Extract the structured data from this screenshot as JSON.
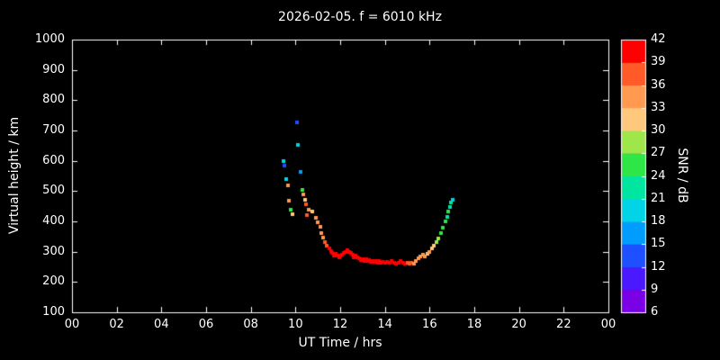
{
  "title": "2026-02-05. f = 6010 kHz",
  "colors": {
    "background": "#000000",
    "foreground": "#ffffff"
  },
  "axes": {
    "x": {
      "label": "UT Time / hrs",
      "tick_labels": [
        "00",
        "02",
        "04",
        "06",
        "08",
        "10",
        "12",
        "14",
        "16",
        "18",
        "20",
        "22",
        "00"
      ],
      "min": 0,
      "max": 24
    },
    "y": {
      "label": "Virtual height / km",
      "tick_values": [
        100,
        200,
        300,
        400,
        500,
        600,
        700,
        800,
        900,
        1000
      ],
      "min": 100,
      "max": 1000
    }
  },
  "colorbar": {
    "label": "SNR / dB",
    "tick_values": [
      6,
      9,
      12,
      15,
      18,
      21,
      24,
      27,
      30,
      33,
      36,
      39,
      42
    ],
    "min": 6,
    "max": 42,
    "segment_colors": [
      "#7a00e6",
      "#4b19ff",
      "#1e50ff",
      "#009dff",
      "#00d4e6",
      "#00e6a0",
      "#2ee645",
      "#9fe64b",
      "#ffc87d",
      "#ff9a50",
      "#ff5a28",
      "#ff0000"
    ]
  },
  "chart_data": {
    "type": "scatter",
    "title": "2026-02-05. f = 6010 kHz",
    "xlabel": "UT Time / hrs",
    "ylabel": "Virtual height / km",
    "xlim": [
      0,
      24
    ],
    "ylim": [
      100,
      1000
    ],
    "grid": false,
    "legend": "colorbar-right",
    "color_scale": {
      "label": "SNR / dB",
      "min": 6,
      "max": 42
    },
    "points_t_h_snr": [
      [
        9.45,
        600,
        18
      ],
      [
        9.5,
        585,
        13
      ],
      [
        9.6,
        540,
        20
      ],
      [
        9.65,
        520,
        33
      ],
      [
        9.7,
        468,
        34
      ],
      [
        9.78,
        440,
        25
      ],
      [
        9.85,
        425,
        31
      ],
      [
        10.05,
        728,
        14
      ],
      [
        10.12,
        652,
        19
      ],
      [
        10.22,
        562,
        16
      ],
      [
        10.3,
        505,
        24
      ],
      [
        10.35,
        488,
        33
      ],
      [
        10.42,
        470,
        30
      ],
      [
        10.48,
        455,
        36
      ],
      [
        10.52,
        420,
        38
      ],
      [
        10.58,
        440,
        33
      ],
      [
        10.75,
        432,
        32
      ],
      [
        10.9,
        412,
        33
      ],
      [
        11.0,
        398,
        34
      ],
      [
        11.1,
        382,
        33
      ],
      [
        11.15,
        362,
        34
      ],
      [
        11.22,
        348,
        35
      ],
      [
        11.3,
        333,
        37
      ],
      [
        11.4,
        320,
        38
      ],
      [
        11.5,
        310,
        40
      ],
      [
        11.58,
        302,
        40
      ],
      [
        11.65,
        296,
        41
      ],
      [
        11.72,
        288,
        40
      ],
      [
        11.8,
        292,
        41
      ],
      [
        11.88,
        286,
        40
      ],
      [
        11.95,
        282,
        41
      ],
      [
        12.02,
        286,
        40
      ],
      [
        12.1,
        290,
        41
      ],
      [
        12.18,
        295,
        40
      ],
      [
        12.25,
        300,
        40
      ],
      [
        12.32,
        305,
        41
      ],
      [
        12.4,
        300,
        40
      ],
      [
        12.48,
        295,
        41
      ],
      [
        12.55,
        290,
        40
      ],
      [
        12.62,
        282,
        41
      ],
      [
        12.7,
        286,
        40
      ],
      [
        12.78,
        282,
        41
      ],
      [
        12.85,
        278,
        40
      ],
      [
        12.92,
        272,
        41
      ],
      [
        13.0,
        276,
        40
      ],
      [
        13.08,
        270,
        41
      ],
      [
        13.15,
        274,
        40
      ],
      [
        13.22,
        268,
        41
      ],
      [
        13.3,
        272,
        40
      ],
      [
        13.38,
        266,
        41
      ],
      [
        13.45,
        270,
        40
      ],
      [
        13.52,
        265,
        41
      ],
      [
        13.6,
        268,
        40
      ],
      [
        13.68,
        264,
        41
      ],
      [
        13.75,
        268,
        40
      ],
      [
        13.82,
        263,
        41
      ],
      [
        13.9,
        266,
        40
      ],
      [
        14.0,
        262,
        41
      ],
      [
        14.1,
        266,
        40
      ],
      [
        14.2,
        262,
        41
      ],
      [
        14.3,
        268,
        40
      ],
      [
        14.4,
        264,
        40
      ],
      [
        14.5,
        260,
        41
      ],
      [
        14.6,
        264,
        40
      ],
      [
        14.7,
        268,
        40
      ],
      [
        14.8,
        264,
        39
      ],
      [
        14.9,
        260,
        40
      ],
      [
        15.0,
        264,
        38
      ],
      [
        15.1,
        260,
        37
      ],
      [
        15.2,
        264,
        36
      ],
      [
        15.3,
        260,
        35
      ],
      [
        15.4,
        268,
        34
      ],
      [
        15.5,
        278,
        34
      ],
      [
        15.6,
        284,
        33
      ],
      [
        15.7,
        290,
        34
      ],
      [
        15.8,
        285,
        33
      ],
      [
        15.9,
        294,
        32
      ],
      [
        16.0,
        300,
        33
      ],
      [
        16.1,
        310,
        31
      ],
      [
        16.2,
        320,
        30
      ],
      [
        16.3,
        332,
        29
      ],
      [
        16.4,
        345,
        27
      ],
      [
        16.5,
        360,
        26
      ],
      [
        16.6,
        380,
        25
      ],
      [
        16.7,
        400,
        24
      ],
      [
        16.78,
        415,
        23
      ],
      [
        16.85,
        432,
        24
      ],
      [
        16.92,
        448,
        22
      ],
      [
        16.97,
        462,
        21
      ],
      [
        17.02,
        472,
        20
      ]
    ]
  }
}
